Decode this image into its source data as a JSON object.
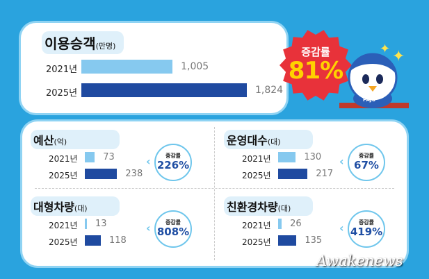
{
  "chart_data": [
    {
      "type": "bar",
      "orientation": "horizontal",
      "title": "이용승객",
      "unit": "(만명)",
      "categories": [
        "2021년",
        "2025년"
      ],
      "values": [
        1005,
        1824
      ],
      "value_labels": [
        "1,005",
        "1,824"
      ],
      "colors": [
        "#86c9ef",
        "#1f4aa0"
      ]
    },
    {
      "type": "bar",
      "orientation": "horizontal",
      "title": "예산",
      "unit": "(억)",
      "categories": [
        "2021년",
        "2025년"
      ],
      "values": [
        73,
        238
      ],
      "value_labels": [
        "73",
        "238"
      ],
      "rate_label": "증감률",
      "rate": "226%"
    },
    {
      "type": "bar",
      "orientation": "horizontal",
      "title": "운영대수",
      "unit": "(대)",
      "categories": [
        "2021년",
        "2025년"
      ],
      "values": [
        130,
        217
      ],
      "value_labels": [
        "130",
        "217"
      ],
      "rate_label": "증감률",
      "rate": "67%"
    },
    {
      "type": "bar",
      "orientation": "horizontal",
      "title": "대형차량",
      "unit": "(대)",
      "categories": [
        "2021년",
        "2025년"
      ],
      "values": [
        13,
        118
      ],
      "value_labels": [
        "13",
        "118"
      ],
      "rate_label": "증감률",
      "rate": "808%"
    },
    {
      "type": "bar",
      "orientation": "horizontal",
      "title": "친환경차량",
      "unit": "(대)",
      "categories": [
        "2021년",
        "2025년"
      ],
      "values": [
        26,
        135
      ],
      "value_labels": [
        "26",
        "135"
      ],
      "rate_label": "증감률",
      "rate": "419%"
    }
  ],
  "badge": {
    "label": "증감률",
    "value": "81%",
    "color": "#e8323a"
  },
  "mascot": {
    "shirt_text": "PAJU"
  },
  "watermark": "Awakenews",
  "colors": {
    "background": "#2aa3de",
    "bar_2021": "#86c9ef",
    "bar_2025": "#1f4aa0"
  }
}
